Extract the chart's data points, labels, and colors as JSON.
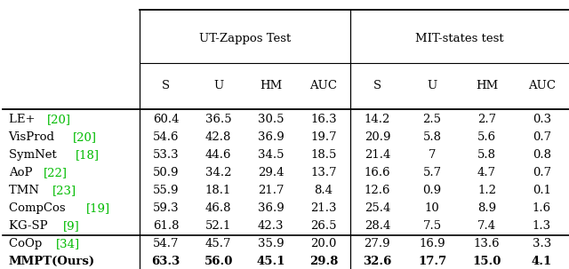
{
  "title1": "UT-Zappos Test",
  "title2": "MIT-states test",
  "col_headers": [
    "S",
    "U",
    "HM",
    "AUC",
    "S",
    "U",
    "HM",
    "AUC"
  ],
  "row_labels": [
    [
      "LE+ ",
      "[20]"
    ],
    [
      "VisProd ",
      "[20]"
    ],
    [
      "SymNet ",
      "[18]"
    ],
    [
      "AoP ",
      "[22]"
    ],
    [
      "TMN ",
      "[23]"
    ],
    [
      "CompCos ",
      "[19]"
    ],
    [
      "KG-SP ",
      "[9]"
    ],
    [
      "CoOp ",
      "[34]"
    ],
    [
      "MMPT(Ours)",
      ""
    ]
  ],
  "data": [
    [
      "60.4",
      "36.5",
      "30.5",
      "16.3",
      "14.2",
      "2.5",
      "2.7",
      "0.3"
    ],
    [
      "54.6",
      "42.8",
      "36.9",
      "19.7",
      "20.9",
      "5.8",
      "5.6",
      "0.7"
    ],
    [
      "53.3",
      "44.6",
      "34.5",
      "18.5",
      "21.4",
      "7",
      "5.8",
      "0.8"
    ],
    [
      "50.9",
      "34.2",
      "29.4",
      "13.7",
      "16.6",
      "5.7",
      "4.7",
      "0.7"
    ],
    [
      "55.9",
      "18.1",
      "21.7",
      "8.4",
      "12.6",
      "0.9",
      "1.2",
      "0.1"
    ],
    [
      "59.3",
      "46.8",
      "36.9",
      "21.3",
      "25.4",
      "10",
      "8.9",
      "1.6"
    ],
    [
      "61.8",
      "52.1",
      "42.3",
      "26.5",
      "28.4",
      "7.5",
      "7.4",
      "1.3"
    ],
    [
      "54.7",
      "45.7",
      "35.9",
      "20.0",
      "27.9",
      "16.9",
      "13.6",
      "3.3"
    ],
    [
      "63.3",
      "56.0",
      "45.1",
      "29.8",
      "32.6",
      "17.7",
      "15.0",
      "4.1"
    ]
  ],
  "bold_row": 8,
  "separator_after_row": 6,
  "ref_color": "#00bb00",
  "bg_color": "#ffffff",
  "text_color": "#000000",
  "figwidth": 6.4,
  "figheight": 3.03,
  "dpi": 100
}
